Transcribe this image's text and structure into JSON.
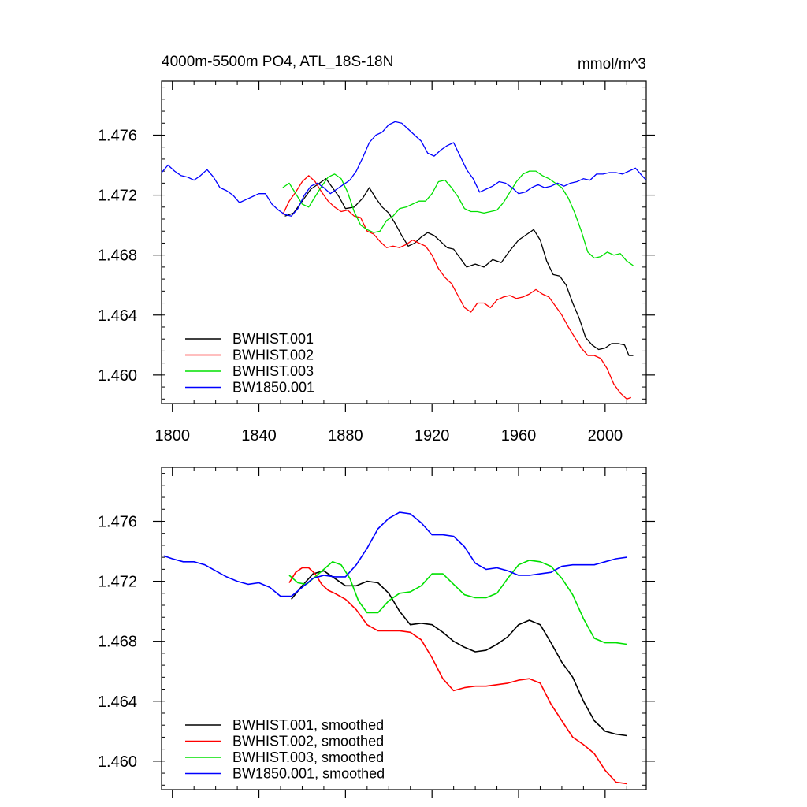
{
  "colors": {
    "black": "#000000",
    "red": "#ff0000",
    "green": "#00e000",
    "blue": "#0000ff"
  },
  "chart_data": [
    {
      "type": "line",
      "title": "4000m-5500m PO4, ATL_18S-18N",
      "units_label": "mmol/m^3",
      "xlim": [
        1795,
        2019
      ],
      "ylim": [
        1.4581,
        1.4796
      ],
      "x_ticks": [
        1800,
        1840,
        1880,
        1920,
        1960,
        2000
      ],
      "x_tick_labels": [
        "1800",
        "1840",
        "1880",
        "1920",
        "1960",
        "2000"
      ],
      "y_ticks": [
        1.46,
        1.464,
        1.468,
        1.472,
        1.476
      ],
      "y_tick_labels": [
        "1.460",
        "1.464",
        "1.468",
        "1.472",
        "1.476"
      ],
      "legend_position": "bottom-left",
      "series": [
        {
          "name": "BWHIST.001",
          "color": "#000000",
          "x": [
            1852,
            1856,
            1860,
            1864,
            1868,
            1871,
            1874,
            1877,
            1880,
            1884,
            1888,
            1891,
            1894,
            1897,
            1900,
            1903,
            1906,
            1909,
            1912,
            1915,
            1918,
            1921,
            1924,
            1927,
            1930,
            1933,
            1936,
            1940,
            1944,
            1948,
            1952,
            1956,
            1960,
            1964,
            1967,
            1970,
            1973,
            1976,
            1979,
            1982,
            1985,
            1988,
            1991,
            1994,
            1997,
            2000,
            2003,
            2006,
            2009,
            2011,
            2013
          ],
          "y": [
            1.4706,
            1.4708,
            1.4716,
            1.4724,
            1.4728,
            1.4731,
            1.4725,
            1.4719,
            1.4711,
            1.4712,
            1.4718,
            1.4725,
            1.4718,
            1.4712,
            1.4708,
            1.4701,
            1.4693,
            1.4686,
            1.4688,
            1.4692,
            1.4695,
            1.4693,
            1.4689,
            1.4685,
            1.4684,
            1.4678,
            1.4672,
            1.4674,
            1.4672,
            1.4677,
            1.4675,
            1.4683,
            1.469,
            1.4694,
            1.4697,
            1.469,
            1.4676,
            1.4667,
            1.4666,
            1.466,
            1.4648,
            1.4638,
            1.4625,
            1.462,
            1.4617,
            1.4618,
            1.4621,
            1.4621,
            1.462,
            1.4613,
            1.4613
          ]
        },
        {
          "name": "BWHIST.002",
          "color": "#ff0000",
          "x": [
            1851,
            1854,
            1857,
            1860,
            1863,
            1866,
            1869,
            1872,
            1875,
            1878,
            1881,
            1884,
            1887,
            1890,
            1893,
            1896,
            1899,
            1902,
            1905,
            1908,
            1911,
            1914,
            1917,
            1920,
            1923,
            1926,
            1929,
            1932,
            1935,
            1938,
            1941,
            1944,
            1947,
            1950,
            1953,
            1956,
            1959,
            1962,
            1965,
            1968,
            1971,
            1974,
            1977,
            1980,
            1983,
            1986,
            1989,
            1992,
            1995,
            1998,
            2001,
            2004,
            2007,
            2010,
            2012
          ],
          "y": [
            1.4707,
            1.4716,
            1.4722,
            1.4729,
            1.4733,
            1.4729,
            1.4722,
            1.4716,
            1.4712,
            1.4709,
            1.471,
            1.4706,
            1.4705,
            1.4696,
            1.4694,
            1.4689,
            1.4685,
            1.4686,
            1.4685,
            1.4687,
            1.469,
            1.4688,
            1.4686,
            1.468,
            1.4671,
            1.4665,
            1.4661,
            1.4653,
            1.4645,
            1.4642,
            1.4648,
            1.4648,
            1.4645,
            1.465,
            1.4652,
            1.4653,
            1.4651,
            1.4652,
            1.4654,
            1.4657,
            1.4654,
            1.4652,
            1.4646,
            1.464,
            1.4632,
            1.4625,
            1.4618,
            1.4613,
            1.4613,
            1.4611,
            1.4604,
            1.4594,
            1.4588,
            1.4584,
            1.4585
          ]
        },
        {
          "name": "BWHIST.003",
          "color": "#00e000",
          "x": [
            1851,
            1854,
            1857,
            1860,
            1863,
            1866,
            1869,
            1872,
            1875,
            1878,
            1881,
            1884,
            1887,
            1890,
            1893,
            1896,
            1899,
            1902,
            1905,
            1908,
            1911,
            1914,
            1917,
            1920,
            1923,
            1926,
            1929,
            1932,
            1935,
            1938,
            1941,
            1944,
            1947,
            1950,
            1953,
            1956,
            1959,
            1962,
            1965,
            1968,
            1971,
            1974,
            1977,
            1980,
            1983,
            1986,
            1989,
            1992,
            1995,
            1998,
            2001,
            2004,
            2007,
            2010,
            2013
          ],
          "y": [
            1.4725,
            1.4728,
            1.4721,
            1.4714,
            1.4712,
            1.4719,
            1.4726,
            1.4732,
            1.4734,
            1.4731,
            1.4722,
            1.4709,
            1.47,
            1.4697,
            1.4695,
            1.4696,
            1.4703,
            1.4706,
            1.4711,
            1.4712,
            1.4714,
            1.4716,
            1.4716,
            1.4721,
            1.4729,
            1.473,
            1.4725,
            1.4719,
            1.4711,
            1.4709,
            1.4709,
            1.4708,
            1.4709,
            1.471,
            1.4715,
            1.4722,
            1.4729,
            1.4734,
            1.4736,
            1.4736,
            1.4733,
            1.4731,
            1.4728,
            1.4725,
            1.4718,
            1.4708,
            1.4696,
            1.4682,
            1.4678,
            1.4679,
            1.4682,
            1.468,
            1.4681,
            1.4676,
            1.4673
          ]
        },
        {
          "name": "BW1850.001",
          "color": "#0000ff",
          "x": [
            1795,
            1798,
            1801,
            1804,
            1807,
            1810,
            1813,
            1816,
            1819,
            1822,
            1825,
            1828,
            1831,
            1834,
            1837,
            1840,
            1843,
            1846,
            1849,
            1852,
            1855,
            1858,
            1861,
            1864,
            1867,
            1870,
            1873,
            1876,
            1879,
            1882,
            1885,
            1888,
            1891,
            1894,
            1897,
            1900,
            1903,
            1906,
            1909,
            1912,
            1915,
            1918,
            1921,
            1924,
            1927,
            1930,
            1933,
            1936,
            1939,
            1942,
            1945,
            1948,
            1951,
            1954,
            1957,
            1960,
            1963,
            1966,
            1969,
            1972,
            1975,
            1978,
            1981,
            1984,
            1987,
            1990,
            1993,
            1996,
            1999,
            2002,
            2005,
            2008,
            2011,
            2014,
            2017,
            2019
          ],
          "y": [
            1.4735,
            1.474,
            1.4736,
            1.4733,
            1.4732,
            1.473,
            1.4733,
            1.4737,
            1.4732,
            1.4725,
            1.4723,
            1.472,
            1.4715,
            1.4717,
            1.4719,
            1.4721,
            1.4721,
            1.4714,
            1.471,
            1.4707,
            1.4706,
            1.4711,
            1.472,
            1.4726,
            1.4728,
            1.4725,
            1.4721,
            1.4724,
            1.4727,
            1.473,
            1.4736,
            1.4745,
            1.4755,
            1.476,
            1.4762,
            1.4767,
            1.4769,
            1.4768,
            1.4764,
            1.476,
            1.4756,
            1.4748,
            1.4746,
            1.475,
            1.4753,
            1.4755,
            1.4746,
            1.4737,
            1.4731,
            1.4722,
            1.4724,
            1.4726,
            1.4729,
            1.4728,
            1.4725,
            1.4721,
            1.4722,
            1.4725,
            1.4727,
            1.4725,
            1.4726,
            1.4728,
            1.4726,
            1.4728,
            1.4729,
            1.4731,
            1.473,
            1.4734,
            1.4734,
            1.4735,
            1.4735,
            1.4734,
            1.4736,
            1.4738,
            1.4733,
            1.473
          ]
        }
      ]
    },
    {
      "type": "line",
      "xlim": [
        1795,
        2019
      ],
      "ylim": [
        1.4581,
        1.4796
      ],
      "x_ticks": [
        1800,
        1840,
        1880,
        1920,
        1960,
        2000
      ],
      "y_ticks": [
        1.46,
        1.464,
        1.468,
        1.472,
        1.476
      ],
      "y_tick_labels": [
        "1.460",
        "1.464",
        "1.468",
        "1.472",
        "1.476"
      ],
      "legend_position": "bottom-left",
      "series": [
        {
          "name": "BWHIST.001, smoothed",
          "color": "#000000",
          "x": [
            1855,
            1860,
            1865,
            1870,
            1875,
            1880,
            1885,
            1890,
            1895,
            1900,
            1905,
            1910,
            1915,
            1920,
            1925,
            1930,
            1935,
            1940,
            1945,
            1950,
            1955,
            1960,
            1965,
            1970,
            1975,
            1980,
            1985,
            1990,
            1995,
            2000,
            2005,
            2010
          ],
          "y": [
            1.4708,
            1.4717,
            1.4725,
            1.4727,
            1.4722,
            1.4717,
            1.4717,
            1.472,
            1.4719,
            1.4712,
            1.47,
            1.4691,
            1.4692,
            1.4691,
            1.4686,
            1.468,
            1.4676,
            1.4673,
            1.4674,
            1.4678,
            1.4683,
            1.4691,
            1.4694,
            1.4691,
            1.4679,
            1.4666,
            1.4656,
            1.464,
            1.4627,
            1.462,
            1.4618,
            1.4617
          ]
        },
        {
          "name": "BWHIST.002, smoothed",
          "color": "#ff0000",
          "x": [
            1854,
            1857,
            1860,
            1863,
            1866,
            1869,
            1872,
            1875,
            1880,
            1885,
            1890,
            1895,
            1900,
            1905,
            1910,
            1915,
            1920,
            1925,
            1930,
            1935,
            1940,
            1945,
            1950,
            1955,
            1960,
            1965,
            1970,
            1975,
            1980,
            1985,
            1990,
            1995,
            2000,
            2005,
            2010
          ],
          "y": [
            1.4719,
            1.4726,
            1.4729,
            1.4729,
            1.4725,
            1.4718,
            1.4714,
            1.4712,
            1.4708,
            1.4701,
            1.4691,
            1.4687,
            1.4687,
            1.4687,
            1.4686,
            1.4681,
            1.4669,
            1.4655,
            1.4647,
            1.4649,
            1.465,
            1.465,
            1.4651,
            1.4652,
            1.4654,
            1.4655,
            1.4652,
            1.4638,
            1.4627,
            1.4616,
            1.4611,
            1.4605,
            1.4594,
            1.4586,
            1.4585
          ]
        },
        {
          "name": "BWHIST.003, smoothed",
          "color": "#00e000",
          "x": [
            1854,
            1858,
            1862,
            1866,
            1870,
            1874,
            1878,
            1882,
            1886,
            1890,
            1895,
            1900,
            1905,
            1910,
            1915,
            1920,
            1925,
            1930,
            1935,
            1940,
            1945,
            1950,
            1955,
            1960,
            1965,
            1970,
            1975,
            1980,
            1985,
            1990,
            1995,
            2000,
            2005,
            2010
          ],
          "y": [
            1.4724,
            1.4719,
            1.4718,
            1.4723,
            1.4728,
            1.4733,
            1.4731,
            1.4722,
            1.4707,
            1.4699,
            1.4699,
            1.4707,
            1.4712,
            1.4713,
            1.4717,
            1.4725,
            1.4725,
            1.4718,
            1.4711,
            1.4709,
            1.4709,
            1.4712,
            1.4722,
            1.4731,
            1.4734,
            1.4733,
            1.473,
            1.4722,
            1.4711,
            1.4695,
            1.4682,
            1.4679,
            1.4679,
            1.4678
          ]
        },
        {
          "name": "BW1850.001, smoothed",
          "color": "#0000ff",
          "x": [
            1796,
            1800,
            1805,
            1810,
            1815,
            1820,
            1825,
            1830,
            1835,
            1840,
            1845,
            1850,
            1855,
            1860,
            1865,
            1870,
            1875,
            1880,
            1885,
            1890,
            1895,
            1900,
            1905,
            1910,
            1915,
            1920,
            1925,
            1930,
            1935,
            1940,
            1945,
            1950,
            1955,
            1960,
            1965,
            1970,
            1975,
            1980,
            1985,
            1990,
            1995,
            2000,
            2005,
            2010
          ],
          "y": [
            1.4737,
            1.4735,
            1.4733,
            1.4733,
            1.4731,
            1.4727,
            1.4723,
            1.472,
            1.4718,
            1.4719,
            1.4716,
            1.471,
            1.471,
            1.4716,
            1.4722,
            1.4724,
            1.4723,
            1.4723,
            1.4731,
            1.4742,
            1.4755,
            1.4762,
            1.4766,
            1.4765,
            1.4759,
            1.4751,
            1.4751,
            1.475,
            1.4743,
            1.4732,
            1.4728,
            1.4729,
            1.4727,
            1.4724,
            1.4724,
            1.4725,
            1.4726,
            1.473,
            1.4731,
            1.4731,
            1.4731,
            1.4733,
            1.4735,
            1.4736
          ]
        }
      ]
    }
  ]
}
